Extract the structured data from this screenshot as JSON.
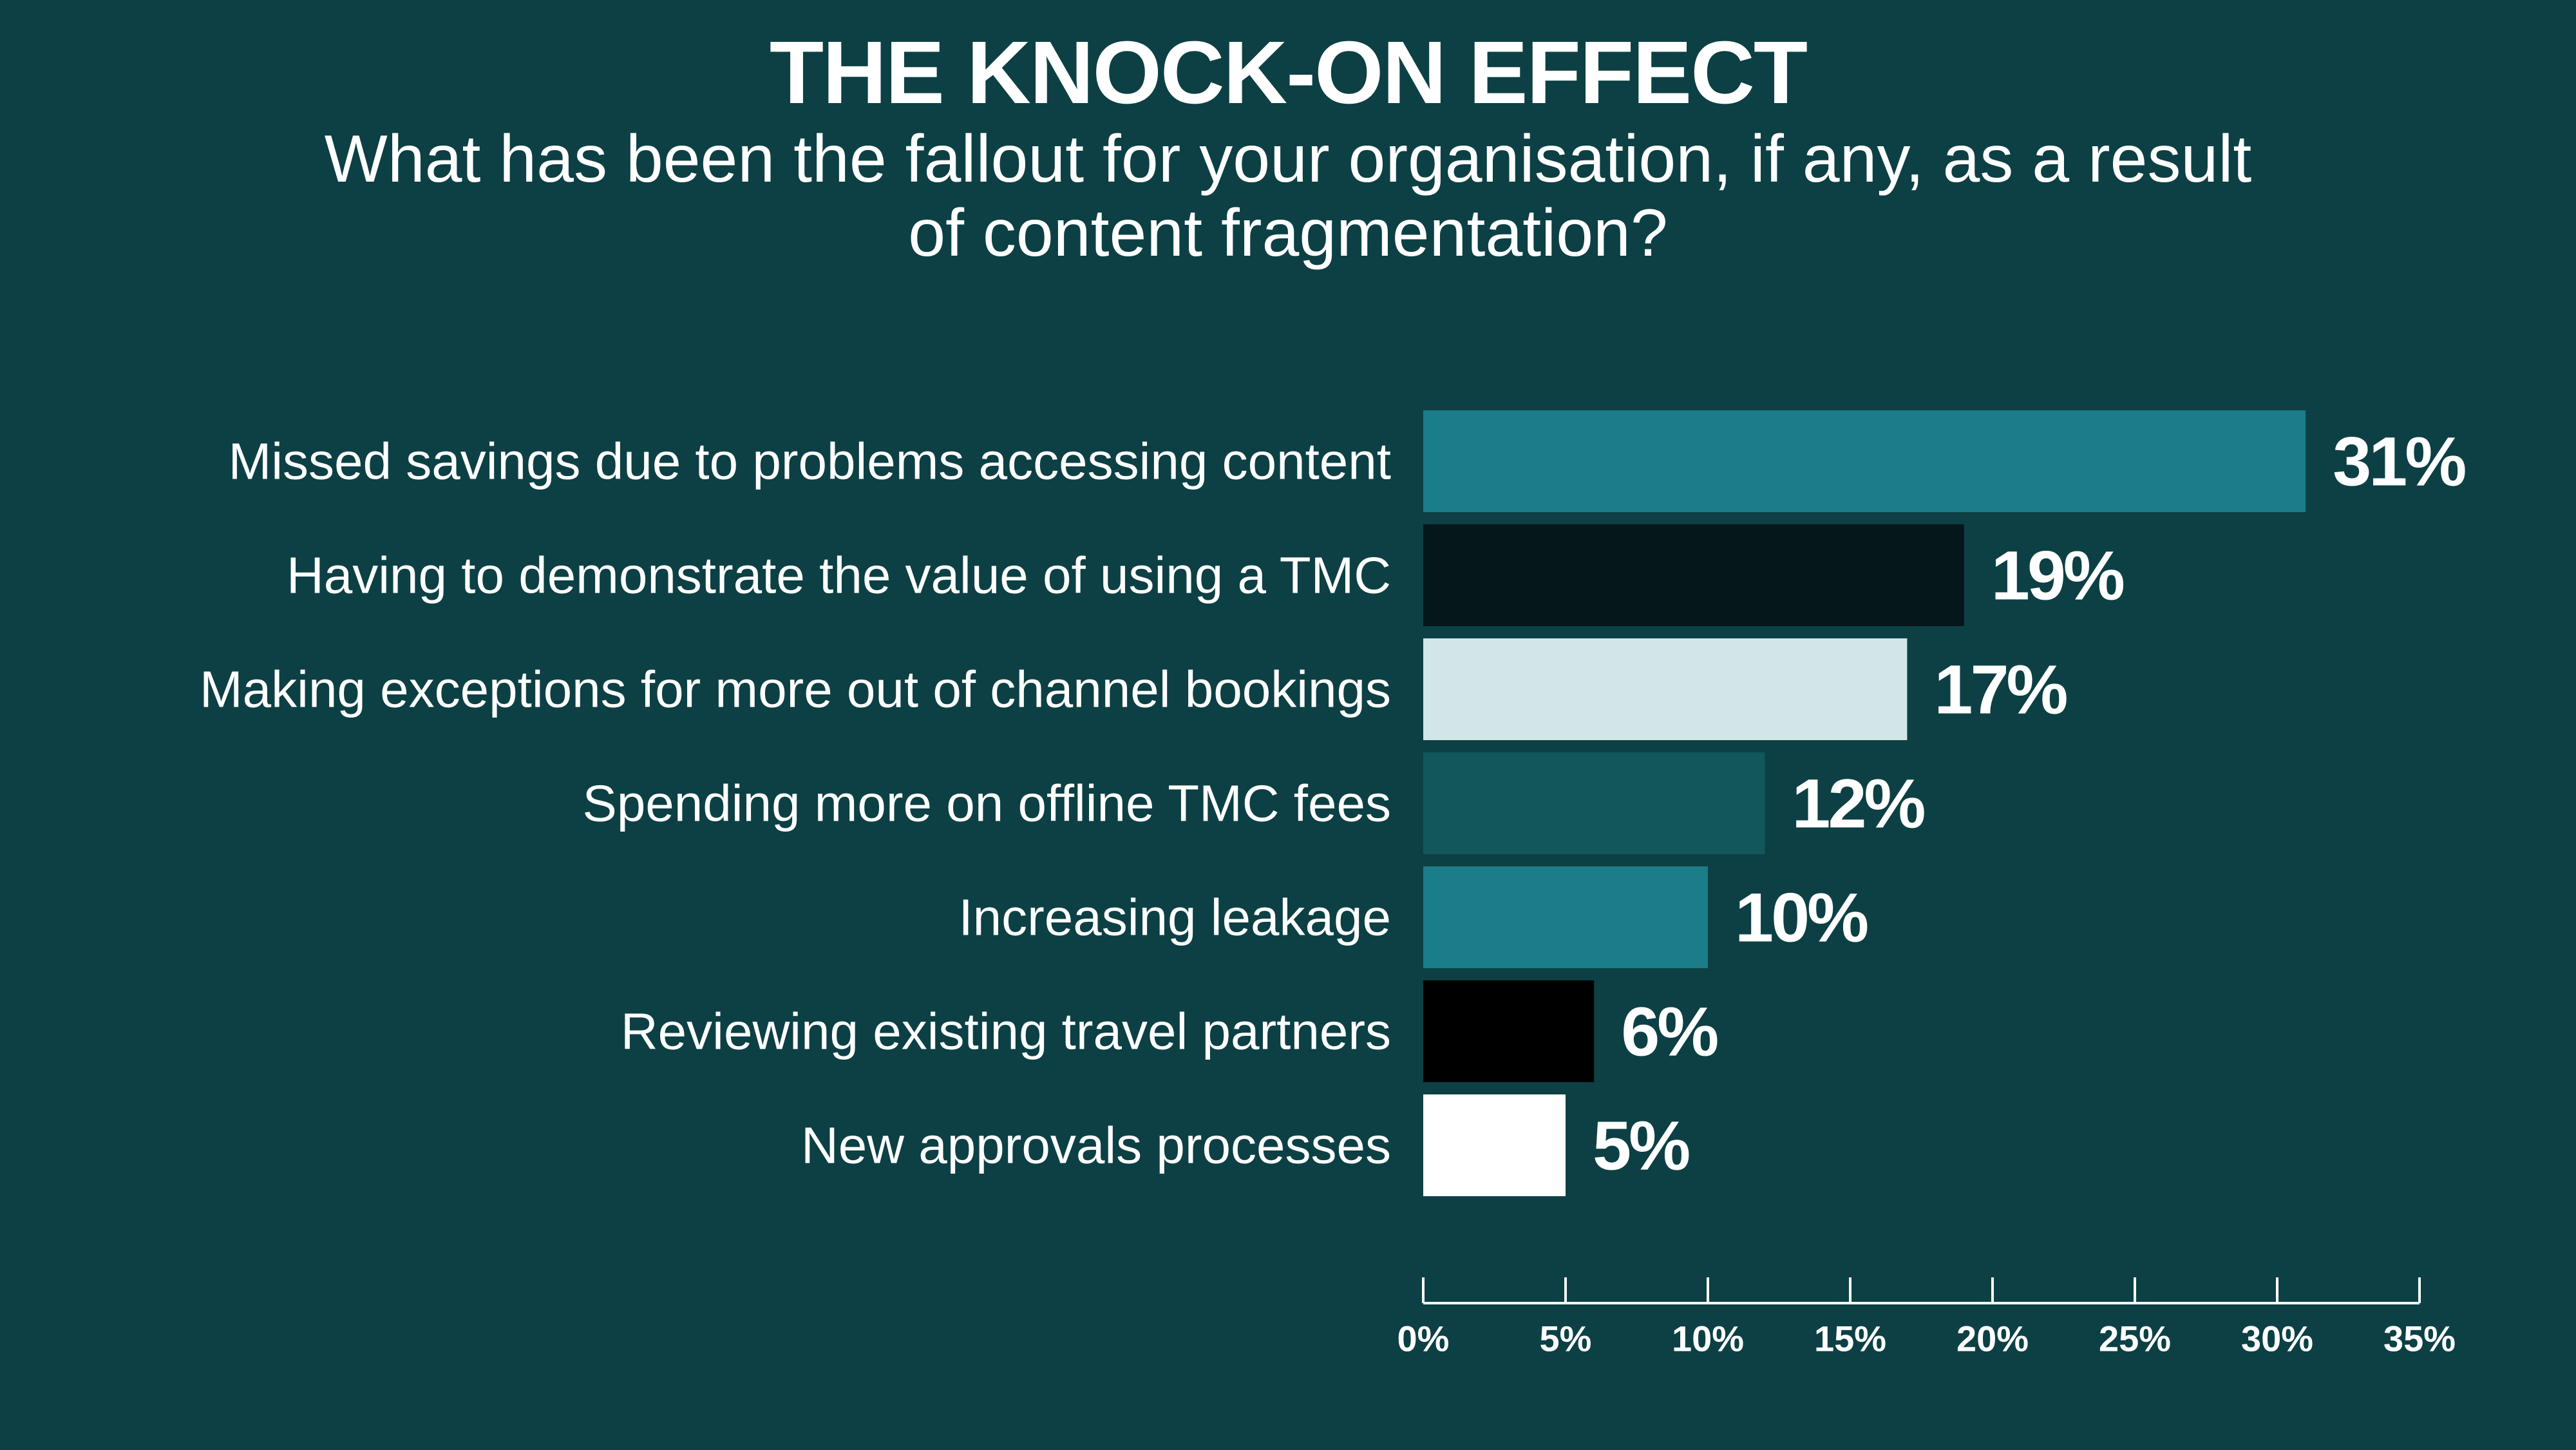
{
  "chart_data": {
    "type": "bar",
    "orientation": "horizontal",
    "title": "THE KNOCK-ON EFFECT",
    "subtitle": "What has been the fallout for your organisation, if any, as a result of content fragmentation?",
    "categories": [
      "Missed savings due to problems accessing content",
      "Having to demonstrate the value of using a TMC",
      "Making exceptions for more out of channel bookings",
      "Spending more on offline TMC fees",
      "Increasing leakage",
      "Reviewing existing travel partners",
      "New approvals processes"
    ],
    "values": [
      31,
      19,
      17,
      12,
      10,
      6,
      5
    ],
    "data_labels": [
      "31%",
      "19%",
      "17%",
      "12%",
      "10%",
      "6%",
      "5%"
    ],
    "bar_colors": [
      "#1a7d87",
      "#05171a",
      "#d2e5e7",
      "#11575c",
      "#1a7d87",
      "#000000",
      "#ffffff"
    ],
    "xlim": [
      0,
      35
    ],
    "xticks": [
      0,
      5,
      10,
      15,
      20,
      25,
      30,
      35
    ],
    "xtick_labels": [
      "0%",
      "5%",
      "10%",
      "15%",
      "20%",
      "25%",
      "30%",
      "35%"
    ],
    "grid": false,
    "legend": "none"
  },
  "colors": {
    "background": "#0c4044",
    "text": "#ffffff"
  }
}
